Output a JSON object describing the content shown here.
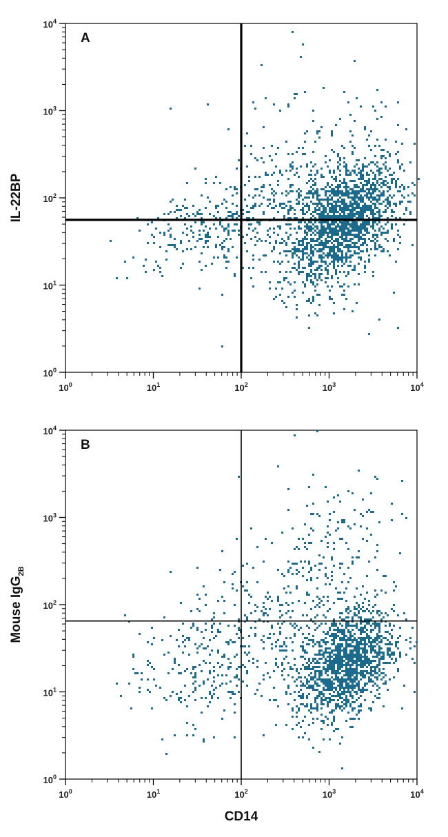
{
  "chart_data": [
    {
      "type": "scatter",
      "panel_label": "A",
      "ylabel": "IL-22BP",
      "xlabel": "",
      "x_scale": "log",
      "y_scale": "log",
      "xlim": [
        1,
        10000
      ],
      "ylim": [
        1,
        10000
      ],
      "tick_labels": {
        "base": "10",
        "exponents": [
          "0",
          "1",
          "2",
          "3",
          "4"
        ]
      },
      "gate_lines": {
        "x": 100,
        "y": 56
      },
      "point_color": "#1c6a8c",
      "clusters": [
        {
          "center": [
            1400,
            55
          ],
          "count": 1900,
          "spread": [
            0.33,
            0.3
          ],
          "tilt": 0.45
        },
        {
          "center": [
            45,
            48
          ],
          "count": 240,
          "spread": [
            0.42,
            0.25
          ],
          "tilt": 0.25
        },
        {
          "center": [
            300,
            160
          ],
          "count": 260,
          "spread": [
            0.55,
            0.4
          ],
          "tilt": 0.35
        },
        {
          "center": [
            700,
            12
          ],
          "count": 60,
          "spread": [
            0.4,
            0.25
          ],
          "tilt": 0.0
        }
      ],
      "outliers": [
        [
          500,
          6000
        ],
        [
          380,
          8000
        ],
        [
          170,
          3400
        ],
        [
          400,
          1600
        ],
        [
          460,
          4300
        ],
        [
          140,
          1100
        ],
        [
          330,
          1200
        ],
        [
          60,
          2
        ],
        [
          80,
          14
        ],
        [
          10,
          15
        ],
        [
          8,
          20
        ]
      ]
    },
    {
      "type": "scatter",
      "panel_label": "B",
      "ylabel": "Mouse IgG",
      "ylabel_subscript": "2B",
      "xlabel": "CD14",
      "x_scale": "log",
      "y_scale": "log",
      "xlim": [
        1,
        10000
      ],
      "ylim": [
        1,
        10000
      ],
      "tick_labels": {
        "base": "10",
        "exponents": [
          "0",
          "1",
          "2",
          "3",
          "4"
        ]
      },
      "gate_lines": {
        "x": 100,
        "y": 65
      },
      "point_color": "#1c6a8c",
      "clusters": [
        {
          "center": [
            1500,
            22
          ],
          "count": 1500,
          "spread": [
            0.28,
            0.3
          ],
          "tilt": 0.4
        },
        {
          "center": [
            40,
            22
          ],
          "count": 220,
          "spread": [
            0.45,
            0.35
          ],
          "tilt": 0.2
        },
        {
          "center": [
            900,
            400
          ],
          "count": 180,
          "spread": [
            0.35,
            0.4
          ],
          "tilt": 0.55
        },
        {
          "center": [
            200,
            60
          ],
          "count": 220,
          "spread": [
            0.55,
            0.45
          ],
          "tilt": 0.35
        }
      ],
      "outliers": [
        [
          700,
          9800
        ],
        [
          400,
          9000
        ],
        [
          260,
          4000
        ],
        [
          90,
          3000
        ],
        [
          330,
          2200
        ],
        [
          20,
          8
        ],
        [
          14,
          2
        ],
        [
          12,
          3
        ],
        [
          1400,
          1.4
        ],
        [
          3200,
          3000
        ]
      ]
    }
  ]
}
